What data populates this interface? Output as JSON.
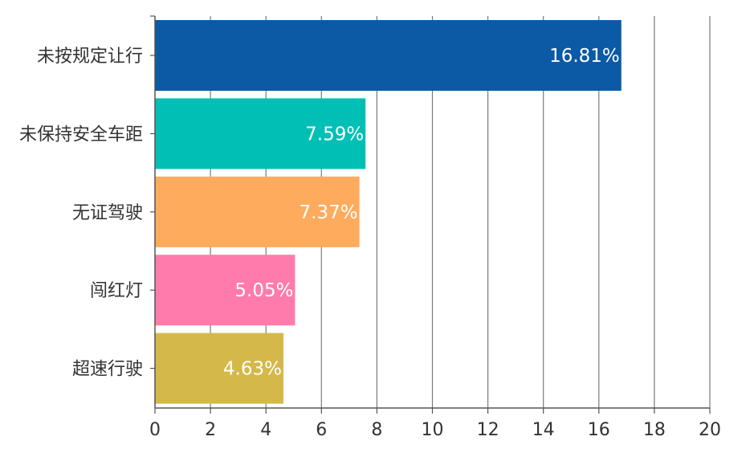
{
  "chart_data": {
    "type": "bar",
    "orientation": "horizontal",
    "categories": [
      "未按规定让行",
      "未保持安全车距",
      "无证驾驶",
      "闯红灯",
      "超速行驶"
    ],
    "values": [
      16.81,
      7.59,
      7.37,
      5.05,
      4.63
    ],
    "value_labels": [
      "16.81%",
      "7.59%",
      "7.37%",
      "5.05%",
      "4.63%"
    ],
    "bar_colors": [
      "#0c5aa6",
      "#00c0b5",
      "#ffab5e",
      "#ff7bab",
      "#d4b84a"
    ],
    "xlim": [
      0,
      20
    ],
    "xticks": [
      0,
      2,
      4,
      6,
      8,
      10,
      12,
      14,
      16,
      18,
      20
    ],
    "xtick_labels": [
      "0",
      "2",
      "4",
      "6",
      "8",
      "10",
      "12",
      "14",
      "16",
      "18",
      "20"
    ],
    "grid": "vertical",
    "title": "",
    "xlabel": "",
    "ylabel": ""
  }
}
